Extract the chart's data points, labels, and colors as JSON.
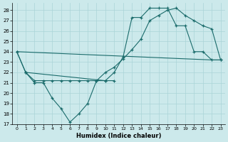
{
  "xlabel": "Humidex (Indice chaleur)",
  "bg_color": "#cce9eb",
  "grid_color": "#aad4d7",
  "line_color": "#1a6b6b",
  "xlim": [
    -0.5,
    23.5
  ],
  "ylim": [
    17,
    28.7
  ],
  "xticks": [
    0,
    1,
    2,
    3,
    4,
    5,
    6,
    7,
    8,
    9,
    10,
    11,
    12,
    13,
    14,
    15,
    16,
    17,
    18,
    19,
    20,
    21,
    22,
    23
  ],
  "yticks": [
    17,
    18,
    19,
    20,
    21,
    22,
    23,
    24,
    25,
    26,
    27,
    28
  ],
  "line_zigzag": {
    "x": [
      0,
      1,
      2,
      3,
      4,
      5,
      6,
      7,
      8,
      9,
      10,
      11
    ],
    "y": [
      24,
      22,
      21,
      21,
      19.5,
      18.5,
      17.2,
      18.0,
      19.0,
      21.2,
      21.2,
      21.2
    ]
  },
  "line_arc": {
    "x": [
      1,
      2,
      3,
      4,
      5,
      6,
      7,
      8,
      9,
      10,
      11,
      12,
      13,
      14,
      15,
      16,
      17,
      18,
      19,
      20,
      21,
      22,
      23
    ],
    "y": [
      22,
      21.2,
      21.2,
      21.2,
      21.2,
      21.2,
      21.2,
      21.2,
      21.2,
      22,
      22.5,
      23.3,
      24.2,
      25.2,
      27.0,
      27.5,
      28.0,
      28.2,
      27.5,
      27.0,
      26.5,
      26.2,
      23.2
    ]
  },
  "line_peak": {
    "x": [
      0,
      1,
      10,
      11,
      12,
      13,
      14,
      15,
      16,
      17,
      18,
      19,
      20,
      21,
      22,
      23
    ],
    "y": [
      24,
      22,
      21.2,
      22.0,
      23.5,
      27.3,
      27.3,
      28.2,
      28.2,
      28.2,
      26.5,
      26.5,
      24.0,
      24.0,
      23.2,
      23.2
    ]
  },
  "line_diagonal": {
    "x": [
      0,
      22,
      23
    ],
    "y": [
      24,
      23.2,
      23.2
    ]
  }
}
